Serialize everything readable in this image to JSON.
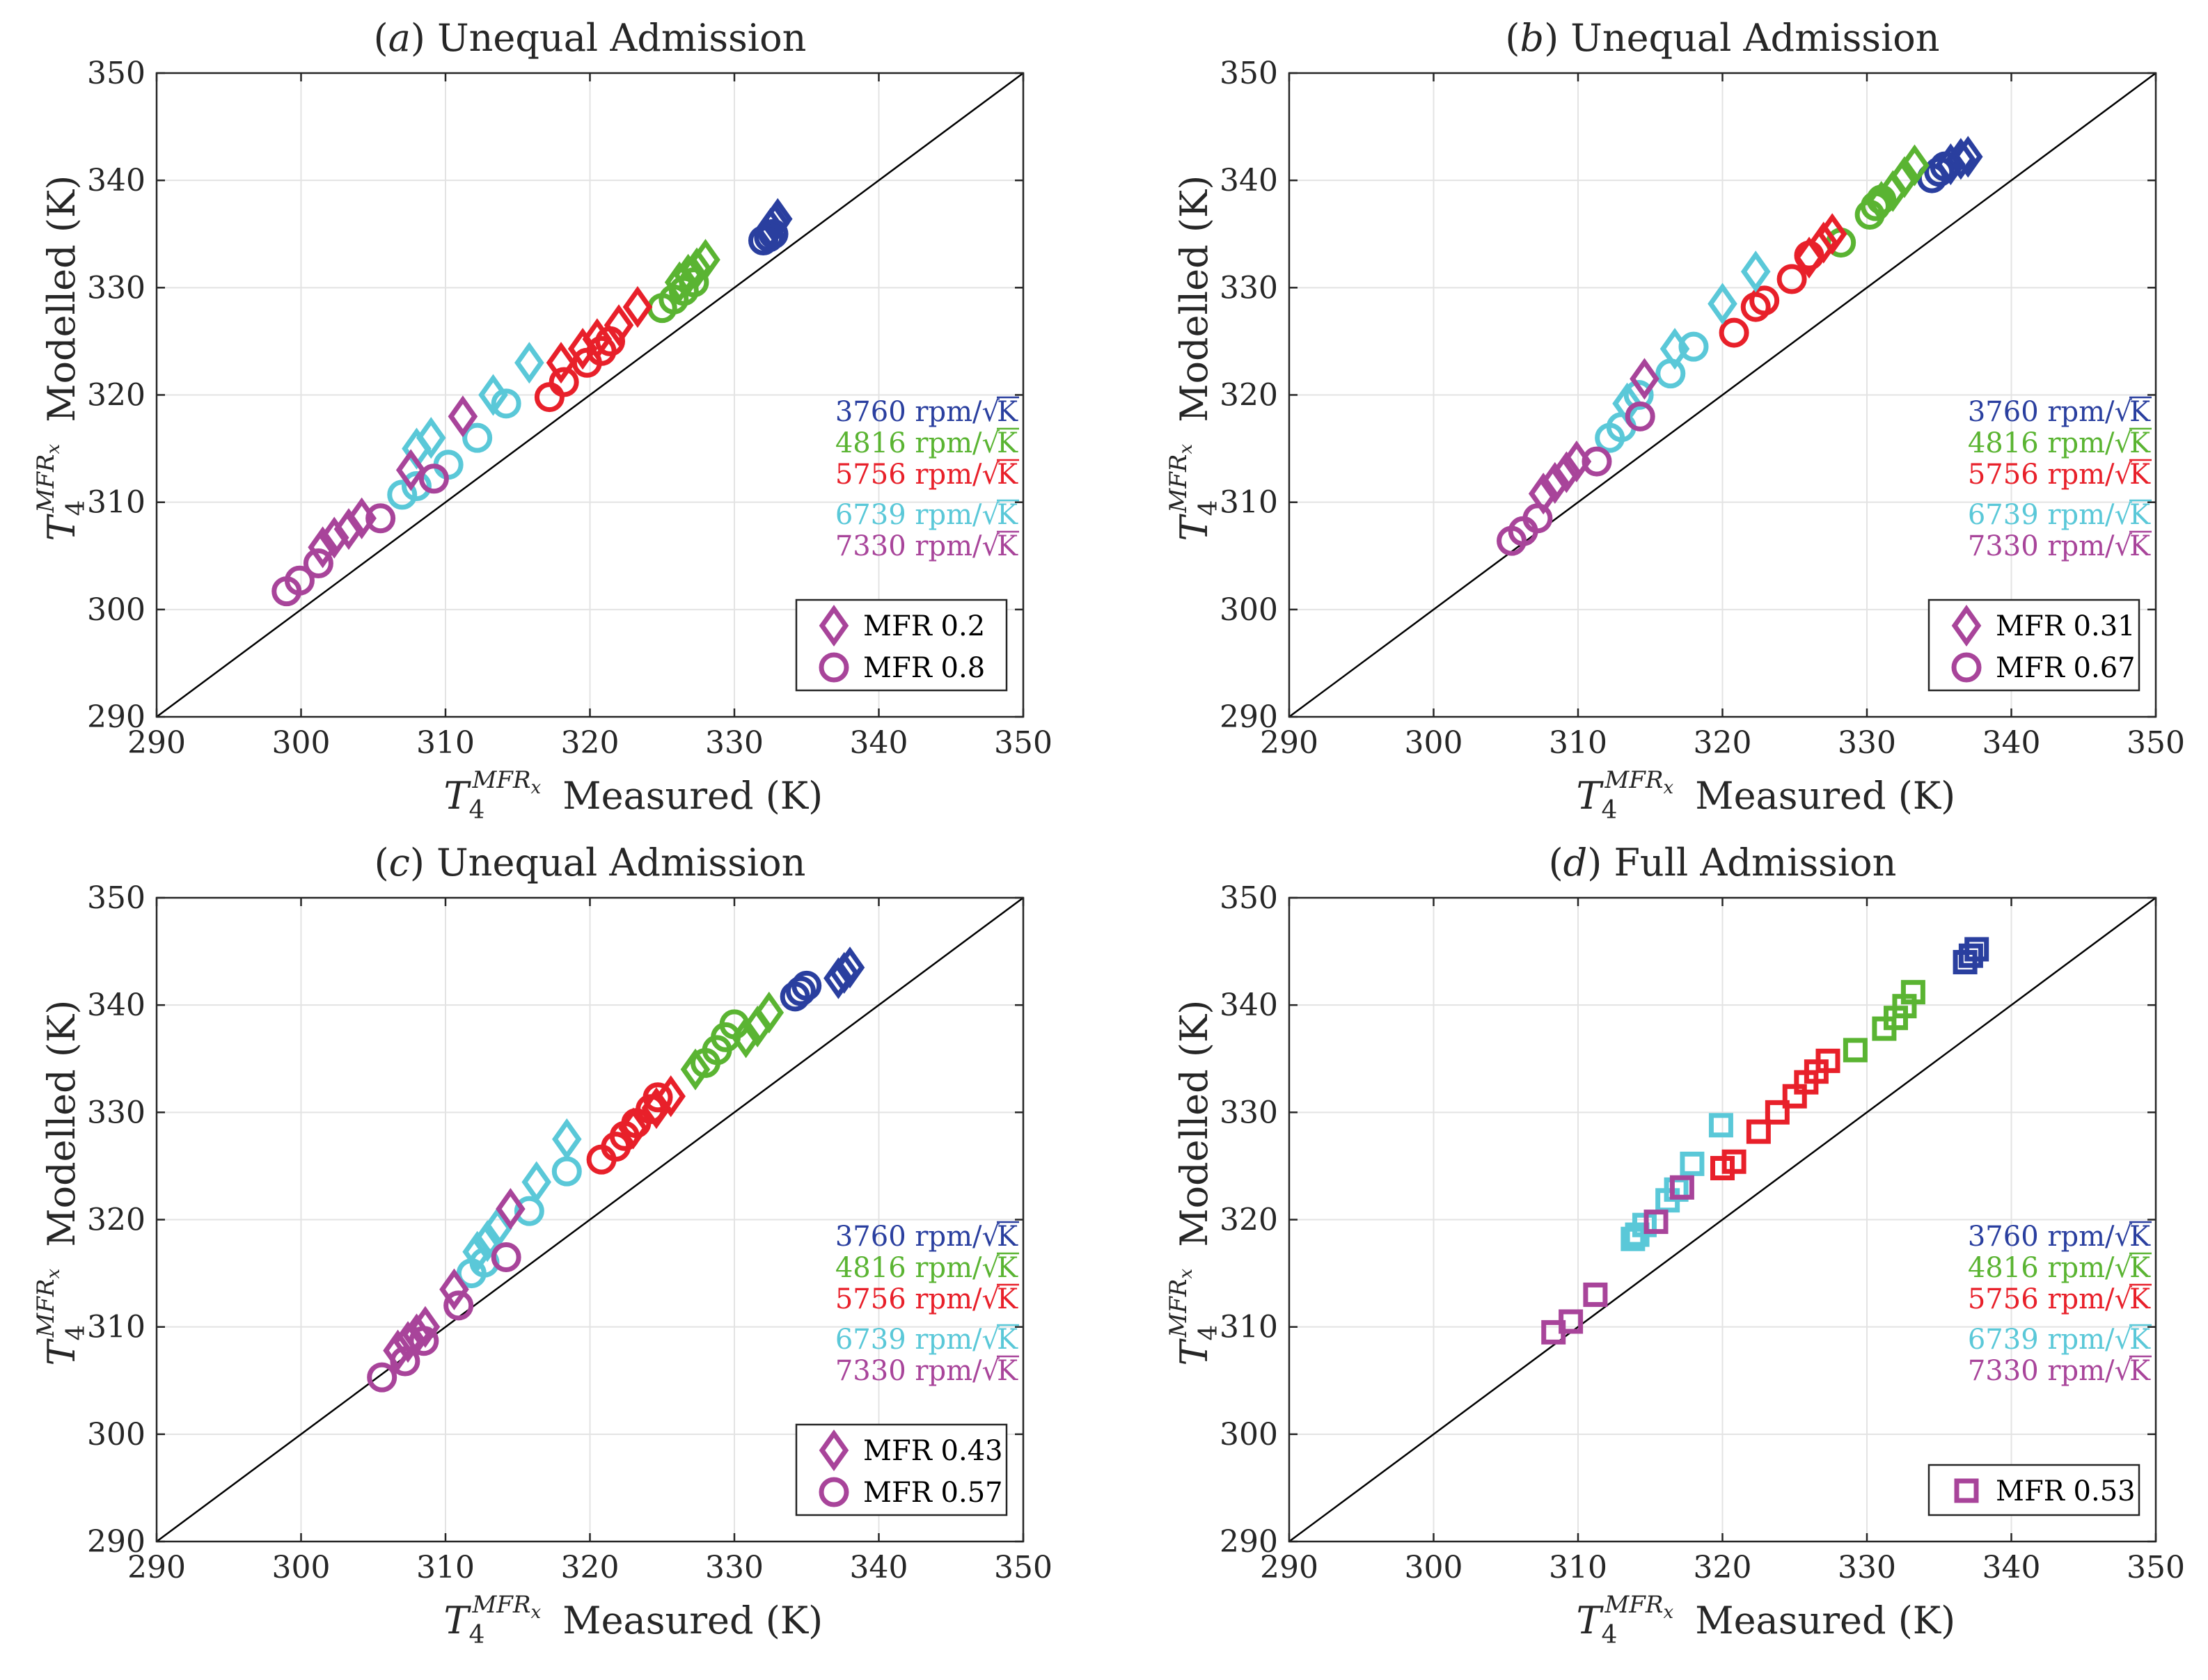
{
  "figure": {
    "x_label_parts": {
      "symbol": "T",
      "sub": "4",
      "sup": "MFR",
      "sup_sub": "x",
      "text": "Measured (K)"
    },
    "y_label_parts": {
      "symbol": "T",
      "sub": "4",
      "sup": "MFR",
      "sup_sub": "x",
      "text": "Modelled (K)"
    },
    "speed_labels": [
      {
        "value": "3760",
        "unit": "rpm/",
        "root": "K",
        "color": "#2a3f9f"
      },
      {
        "value": "4816",
        "unit": "rpm/",
        "root": "K",
        "color": "#5ab432"
      },
      {
        "value": "5756",
        "unit": "rpm/",
        "root": "K",
        "color": "#e8202a"
      },
      {
        "value": "6739",
        "unit": "rpm/",
        "root": "K",
        "color": "#5ac8d8"
      },
      {
        "value": "7330",
        "unit": "rpm/",
        "root": "K",
        "color": "#a8449a"
      }
    ]
  },
  "chart_data": [
    {
      "type": "scatter",
      "title_letter": "a",
      "title_text": "Unequal Admission",
      "xlim": [
        290,
        350
      ],
      "ylim": [
        290,
        350
      ],
      "ticks": [
        290,
        300,
        310,
        320,
        330,
        340,
        350
      ],
      "grid": true,
      "reference_line": "y = x",
      "legend": [
        {
          "marker": "diamond",
          "label": "MFR 0.2"
        },
        {
          "marker": "circle",
          "label": "MFR 0.8"
        }
      ],
      "series": [
        {
          "speed": "3760",
          "marker": "diamond",
          "points": [
            [
              332.5,
              335.5
            ],
            [
              332.8,
              336.0
            ],
            [
              333.0,
              336.4
            ]
          ]
        },
        {
          "speed": "3760",
          "marker": "circle",
          "points": [
            [
              332.0,
              334.4
            ],
            [
              332.4,
              334.7
            ],
            [
              332.7,
              335.0
            ]
          ]
        },
        {
          "speed": "4816",
          "marker": "diamond",
          "points": [
            [
              326.2,
              330.5
            ],
            [
              326.8,
              331.2
            ],
            [
              327.4,
              331.8
            ],
            [
              328.0,
              332.6
            ]
          ]
        },
        {
          "speed": "4816",
          "marker": "circle",
          "points": [
            [
              325.0,
              328.1
            ],
            [
              325.8,
              328.9
            ],
            [
              326.5,
              329.7
            ],
            [
              327.2,
              330.5
            ]
          ]
        },
        {
          "speed": "5756",
          "marker": "diamond",
          "points": [
            [
              318.0,
              323.0
            ],
            [
              319.5,
              324.3
            ],
            [
              320.5,
              325.2
            ],
            [
              322.0,
              326.5
            ],
            [
              323.3,
              328.2
            ]
          ]
        },
        {
          "speed": "5756",
          "marker": "circle",
          "points": [
            [
              317.2,
              319.8
            ],
            [
              318.2,
              321.2
            ],
            [
              319.8,
              323.0
            ],
            [
              320.8,
              324.1
            ],
            [
              321.4,
              325.0
            ]
          ]
        },
        {
          "speed": "6739",
          "marker": "diamond",
          "points": [
            [
              308.0,
              315.0
            ],
            [
              309.0,
              316.0
            ],
            [
              313.3,
              320.0
            ],
            [
              315.8,
              323.0
            ]
          ]
        },
        {
          "speed": "6739",
          "marker": "circle",
          "points": [
            [
              307.0,
              310.7
            ],
            [
              308.0,
              311.5
            ],
            [
              310.2,
              313.5
            ],
            [
              312.2,
              316.0
            ],
            [
              314.2,
              319.2
            ]
          ]
        },
        {
          "speed": "7330",
          "marker": "diamond",
          "points": [
            [
              301.5,
              305.8
            ],
            [
              302.3,
              306.7
            ],
            [
              303.3,
              307.5
            ],
            [
              304.2,
              308.5
            ],
            [
              307.6,
              313.0
            ],
            [
              311.2,
              318.0
            ]
          ]
        },
        {
          "speed": "7330",
          "marker": "circle",
          "points": [
            [
              299.0,
              301.7
            ],
            [
              299.9,
              302.7
            ],
            [
              301.2,
              304.3
            ],
            [
              305.5,
              308.5
            ],
            [
              309.2,
              312.2
            ]
          ]
        }
      ]
    },
    {
      "type": "scatter",
      "title_letter": "b",
      "title_text": "Unequal Admission",
      "xlim": [
        290,
        350
      ],
      "ylim": [
        290,
        350
      ],
      "ticks": [
        290,
        300,
        310,
        320,
        330,
        340,
        350
      ],
      "grid": true,
      "reference_line": "y = x",
      "legend": [
        {
          "marker": "diamond",
          "label": "MFR 0.31"
        },
        {
          "marker": "circle",
          "label": "MFR 0.67"
        }
      ],
      "series": [
        {
          "speed": "3760",
          "marker": "diamond",
          "points": [
            [
              335.8,
              341.5
            ],
            [
              336.5,
              342.0
            ],
            [
              337.0,
              342.2
            ]
          ]
        },
        {
          "speed": "3760",
          "marker": "circle",
          "points": [
            [
              334.5,
              340.2
            ],
            [
              335.0,
              340.8
            ],
            [
              335.4,
              341.3
            ]
          ]
        },
        {
          "speed": "4816",
          "marker": "diamond",
          "points": [
            [
              331.0,
              338.0
            ],
            [
              331.8,
              339.0
            ],
            [
              332.6,
              340.3
            ],
            [
              333.3,
              341.4
            ]
          ]
        },
        {
          "speed": "4816",
          "marker": "circle",
          "points": [
            [
              328.2,
              334.2
            ],
            [
              330.2,
              336.8
            ],
            [
              330.6,
              337.6
            ],
            [
              331.0,
              338.2
            ]
          ]
        },
        {
          "speed": "5756",
          "marker": "diamond",
          "points": [
            [
              326.0,
              332.8
            ],
            [
              327.0,
              334.2
            ],
            [
              327.6,
              335.0
            ]
          ]
        },
        {
          "speed": "5756",
          "marker": "circle",
          "points": [
            [
              320.8,
              325.8
            ],
            [
              322.3,
              328.2
            ],
            [
              322.9,
              328.8
            ],
            [
              324.8,
              330.8
            ],
            [
              326.0,
              333.0
            ]
          ]
        },
        {
          "speed": "6739",
          "marker": "diamond",
          "points": [
            [
              313.4,
              319.2
            ],
            [
              316.7,
              324.3
            ],
            [
              320.0,
              328.5
            ],
            [
              322.3,
              331.5
            ]
          ]
        },
        {
          "speed": "6739",
          "marker": "circle",
          "points": [
            [
              312.2,
              316.0
            ],
            [
              313.0,
              317.0
            ],
            [
              314.2,
              320.0
            ],
            [
              316.4,
              322.0
            ],
            [
              318.0,
              324.5
            ]
          ]
        },
        {
          "speed": "7330",
          "marker": "diamond",
          "points": [
            [
              307.6,
              310.8
            ],
            [
              308.4,
              311.8
            ],
            [
              309.2,
              312.8
            ],
            [
              309.9,
              313.8
            ],
            [
              314.6,
              321.5
            ]
          ]
        },
        {
          "speed": "7330",
          "marker": "circle",
          "points": [
            [
              305.4,
              306.4
            ],
            [
              306.2,
              307.3
            ],
            [
              307.2,
              308.5
            ],
            [
              311.3,
              313.8
            ],
            [
              314.3,
              318.0
            ]
          ]
        }
      ]
    },
    {
      "type": "scatter",
      "title_letter": "c",
      "title_text": "Unequal Admission",
      "xlim": [
        290,
        350
      ],
      "ylim": [
        290,
        350
      ],
      "ticks": [
        290,
        300,
        310,
        320,
        330,
        340,
        350
      ],
      "grid": true,
      "reference_line": "y = x",
      "legend": [
        {
          "marker": "diamond",
          "label": "MFR 0.43"
        },
        {
          "marker": "circle",
          "label": "MFR 0.57"
        }
      ],
      "series": [
        {
          "speed": "3760",
          "marker": "diamond",
          "points": [
            [
              337.2,
              342.5
            ],
            [
              337.6,
              343.0
            ],
            [
              338.0,
              343.5
            ]
          ]
        },
        {
          "speed": "3760",
          "marker": "circle",
          "points": [
            [
              334.2,
              340.8
            ],
            [
              334.6,
              341.3
            ],
            [
              335.0,
              341.8
            ]
          ]
        },
        {
          "speed": "4816",
          "marker": "diamond",
          "points": [
            [
              327.3,
              334.0
            ],
            [
              330.8,
              337.0
            ],
            [
              331.6,
              338.0
            ],
            [
              332.4,
              339.3
            ]
          ]
        },
        {
          "speed": "4816",
          "marker": "circle",
          "points": [
            [
              328.0,
              334.6
            ],
            [
              328.8,
              335.8
            ],
            [
              329.4,
              337.0
            ],
            [
              330.0,
              338.2
            ]
          ]
        },
        {
          "speed": "5756",
          "marker": "diamond",
          "points": [
            [
              323.0,
              328.5
            ],
            [
              324.6,
              330.4
            ],
            [
              325.6,
              331.5
            ]
          ]
        },
        {
          "speed": "5756",
          "marker": "circle",
          "points": [
            [
              320.8,
              325.6
            ],
            [
              321.8,
              326.8
            ],
            [
              322.4,
              327.8
            ],
            [
              323.2,
              329.0
            ],
            [
              324.2,
              330.3
            ],
            [
              324.7,
              331.4
            ]
          ]
        },
        {
          "speed": "6739",
          "marker": "diamond",
          "points": [
            [
              312.2,
              317.0
            ],
            [
              312.9,
              318.0
            ],
            [
              313.6,
              319.2
            ],
            [
              316.3,
              323.5
            ],
            [
              318.4,
              327.5
            ]
          ]
        },
        {
          "speed": "6739",
          "marker": "circle",
          "points": [
            [
              311.8,
              315.0
            ],
            [
              312.7,
              316.0
            ],
            [
              315.8,
              320.8
            ],
            [
              318.4,
              324.5
            ]
          ]
        },
        {
          "speed": "7330",
          "marker": "diamond",
          "points": [
            [
              306.7,
              307.8
            ],
            [
              307.4,
              308.6
            ],
            [
              308.0,
              309.3
            ],
            [
              308.6,
              310.0
            ],
            [
              310.6,
              313.5
            ],
            [
              314.5,
              321.0
            ]
          ]
        },
        {
          "speed": "7330",
          "marker": "circle",
          "points": [
            [
              305.6,
              305.3
            ],
            [
              307.2,
              306.8
            ],
            [
              308.5,
              308.7
            ],
            [
              310.9,
              312.0
            ],
            [
              314.2,
              316.5
            ]
          ]
        }
      ]
    },
    {
      "type": "scatter",
      "title_letter": "d",
      "title_text": "Full Admission",
      "xlim": [
        290,
        350
      ],
      "ylim": [
        290,
        350
      ],
      "ticks": [
        290,
        300,
        310,
        320,
        330,
        340,
        350
      ],
      "grid": true,
      "reference_line": "y = x",
      "legend": [
        {
          "marker": "square",
          "label": "MFR 0.53"
        }
      ],
      "series": [
        {
          "speed": "3760",
          "marker": "square",
          "points": [
            [
              336.8,
              344.0
            ],
            [
              337.2,
              344.6
            ],
            [
              337.6,
              345.2
            ]
          ]
        },
        {
          "speed": "4816",
          "marker": "square",
          "points": [
            [
              329.2,
              335.8
            ],
            [
              331.2,
              337.8
            ],
            [
              332.0,
              338.8
            ],
            [
              332.6,
              339.9
            ],
            [
              333.2,
              341.2
            ]
          ]
        },
        {
          "speed": "5756",
          "marker": "square",
          "points": [
            [
              320.0,
              324.8
            ],
            [
              320.8,
              325.4
            ],
            [
              322.5,
              328.2
            ],
            [
              323.8,
              330.0
            ],
            [
              325.0,
              331.5
            ],
            [
              325.8,
              332.8
            ],
            [
              326.5,
              333.8
            ],
            [
              327.3,
              334.8
            ]
          ]
        },
        {
          "speed": "6739",
          "marker": "square",
          "points": [
            [
              313.8,
              318.2
            ],
            [
              314.1,
              318.6
            ],
            [
              314.6,
              319.5
            ],
            [
              316.2,
              321.8
            ],
            [
              316.8,
              322.8
            ],
            [
              317.9,
              325.2
            ],
            [
              319.9,
              328.8
            ]
          ]
        },
        {
          "speed": "7330",
          "marker": "square",
          "points": [
            [
              308.3,
              309.5
            ],
            [
              309.5,
              310.5
            ],
            [
              311.2,
              313.0
            ],
            [
              315.4,
              319.8
            ],
            [
              317.2,
              323.0
            ]
          ]
        }
      ]
    }
  ]
}
